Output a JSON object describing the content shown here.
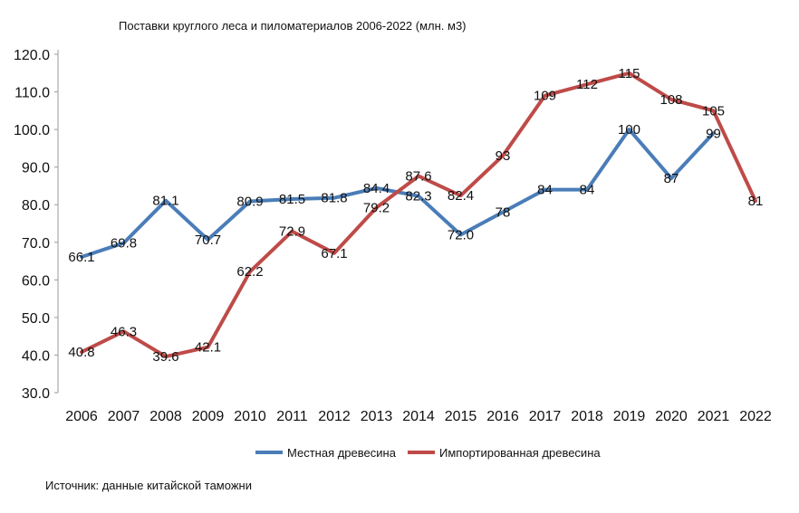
{
  "chart_data": {
    "type": "line",
    "title": "Поставки круглого леса и пиломатериалов 2006-2022 (млн. м3)",
    "source": "Источник: данные китайской таможни",
    "xlabel": "",
    "ylabel": "",
    "ylim": [
      30,
      120
    ],
    "yticks": [
      "30.0",
      "40.0",
      "50.0",
      "60.0",
      "70.0",
      "80.0",
      "90.0",
      "100.0",
      "110.0",
      "120.0"
    ],
    "grid": false,
    "legend_position": "bottom-center",
    "categories": [
      "2006",
      "2007",
      "2008",
      "2009",
      "2010",
      "2011",
      "2012",
      "2013",
      "2014",
      "2015",
      "2016",
      "2017",
      "2018",
      "2019",
      "2020",
      "2021",
      "2022"
    ],
    "series": [
      {
        "name": "Местная древесина",
        "color": "#4A7DB8",
        "values": [
          66.1,
          69.8,
          81.1,
          70.7,
          80.9,
          81.5,
          81.8,
          84.4,
          82.3,
          72.0,
          78,
          84,
          84,
          100,
          87,
          99,
          null
        ],
        "labels": [
          "66.1",
          "69.8",
          "81.1",
          "70.7",
          "80.9",
          "81.5",
          "81.8",
          "84.4",
          "82.3",
          "72.0",
          "78",
          "84",
          "84",
          "100",
          "87",
          "99",
          ""
        ]
      },
      {
        "name": "Импортированная древесина",
        "color": "#BE4B48",
        "values": [
          40.8,
          46.3,
          39.6,
          42.1,
          62.2,
          72.9,
          67.1,
          79.2,
          87.6,
          82.4,
          93,
          109,
          112,
          115,
          108,
          105,
          81
        ],
        "labels": [
          "40.8",
          "46.3",
          "39.6",
          "42.1",
          "62.2",
          "72.9",
          "67.1",
          "79.2",
          "87.6",
          "82.4",
          "93",
          "109",
          "112",
          "115",
          "108",
          "105",
          "81"
        ]
      }
    ]
  }
}
